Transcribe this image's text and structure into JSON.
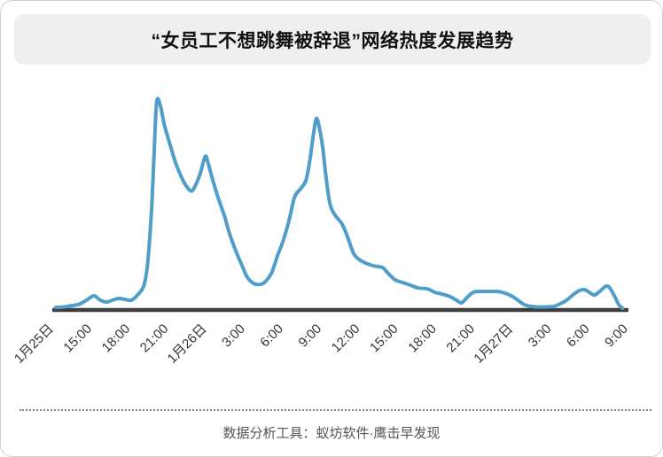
{
  "header": {
    "title": "“女员工不想跳舞被辞退”网络热度发展趋势"
  },
  "footer": {
    "credit": "数据分析工具：蚁坊软件·鹰击早发现"
  },
  "chart_data": {
    "type": "line",
    "title": "“女员工不想跳舞被辞退”网络热度发展趋势",
    "xlabel": "",
    "ylabel": "",
    "grid": false,
    "y_axis_visible": false,
    "legend": null,
    "line_color": "#4E9EC9",
    "axis_color": "#3E3E3E",
    "tick_label_color": "#333333",
    "x_unit": "hours offset from first tick (1月25日)",
    "x_range_hours": [
      0,
      45
    ],
    "ylim": [
      0,
      100
    ],
    "y_note": "relative heat index, main peak (1月25日 ~20:00) = 100",
    "x_ticks": [
      {
        "label": "1月25日",
        "t": 0
      },
      {
        "label": "15:00",
        "t": 3
      },
      {
        "label": "18:00",
        "t": 6
      },
      {
        "label": "21:00",
        "t": 9
      },
      {
        "label": "1月26日",
        "t": 12
      },
      {
        "label": "3:00",
        "t": 15
      },
      {
        "label": "6:00",
        "t": 18
      },
      {
        "label": "9:00",
        "t": 21
      },
      {
        "label": "12:00",
        "t": 24
      },
      {
        "label": "15:00",
        "t": 27
      },
      {
        "label": "18:00",
        "t": 30
      },
      {
        "label": "21:00",
        "t": 33
      },
      {
        "label": "1月27日",
        "t": 36
      },
      {
        "label": "3:00",
        "t": 39
      },
      {
        "label": "6:00",
        "t": 42
      },
      {
        "label": "9:00",
        "t": 45
      }
    ],
    "points": [
      [
        0,
        0.4
      ],
      [
        0.6,
        0.6
      ],
      [
        1.3,
        1.3
      ],
      [
        1.9,
        2.1
      ],
      [
        2.5,
        4.3
      ],
      [
        3.0,
        6.0
      ],
      [
        3.5,
        3.8
      ],
      [
        4.0,
        3.0
      ],
      [
        4.4,
        3.8
      ],
      [
        4.9,
        4.7
      ],
      [
        5.4,
        4.3
      ],
      [
        5.9,
        3.8
      ],
      [
        6.4,
        6.4
      ],
      [
        6.9,
        11.1
      ],
      [
        7.2,
        22.2
      ],
      [
        7.5,
        47.9
      ],
      [
        7.7,
        75.2
      ],
      [
        7.9,
        100
      ],
      [
        8.2,
        97.9
      ],
      [
        8.5,
        88.9
      ],
      [
        9.0,
        78.2
      ],
      [
        9.4,
        70.1
      ],
      [
        9.8,
        64.1
      ],
      [
        10.2,
        59.4
      ],
      [
        10.6,
        56.8
      ],
      [
        10.9,
        59.0
      ],
      [
        11.3,
        65.0
      ],
      [
        11.7,
        73.5
      ],
      [
        11.9,
        70.9
      ],
      [
        12.2,
        64.1
      ],
      [
        12.7,
        53.8
      ],
      [
        13.2,
        44.9
      ],
      [
        13.6,
        36.3
      ],
      [
        14.1,
        27.8
      ],
      [
        14.6,
        20.5
      ],
      [
        15.0,
        15.0
      ],
      [
        15.5,
        12.0
      ],
      [
        16.0,
        11.5
      ],
      [
        16.4,
        12.8
      ],
      [
        16.9,
        17.1
      ],
      [
        17.4,
        26.1
      ],
      [
        17.8,
        32.5
      ],
      [
        18.3,
        43.2
      ],
      [
        18.7,
        53.8
      ],
      [
        19.2,
        58.1
      ],
      [
        19.6,
        62.0
      ],
      [
        19.9,
        71.8
      ],
      [
        20.2,
        85.0
      ],
      [
        20.4,
        91.9
      ],
      [
        20.6,
        88.9
      ],
      [
        20.9,
        78.2
      ],
      [
        21.2,
        62.0
      ],
      [
        21.5,
        50.0
      ],
      [
        21.9,
        44.9
      ],
      [
        22.4,
        41.0
      ],
      [
        22.8,
        35.5
      ],
      [
        23.3,
        26.9
      ],
      [
        23.7,
        23.9
      ],
      [
        24.3,
        21.8
      ],
      [
        24.9,
        20.5
      ],
      [
        25.6,
        19.7
      ],
      [
        26.0,
        17.1
      ],
      [
        26.6,
        13.7
      ],
      [
        27.2,
        12.4
      ],
      [
        27.8,
        11.1
      ],
      [
        28.4,
        9.8
      ],
      [
        29.1,
        9.4
      ],
      [
        29.7,
        7.7
      ],
      [
        30.3,
        6.8
      ],
      [
        30.9,
        5.6
      ],
      [
        31.4,
        3.8
      ],
      [
        31.8,
        2.6
      ],
      [
        32.2,
        5.1
      ],
      [
        32.7,
        7.7
      ],
      [
        33.3,
        8.1
      ],
      [
        33.9,
        8.1
      ],
      [
        34.6,
        8.1
      ],
      [
        35.2,
        7.3
      ],
      [
        35.8,
        5.6
      ],
      [
        36.3,
        3.4
      ],
      [
        36.7,
        1.7
      ],
      [
        37.2,
        0.9
      ],
      [
        37.7,
        0.6
      ],
      [
        38.3,
        0.6
      ],
      [
        39.0,
        0.9
      ],
      [
        39.5,
        2.1
      ],
      [
        40.0,
        3.8
      ],
      [
        40.5,
        6.4
      ],
      [
        41.0,
        8.5
      ],
      [
        41.4,
        9.0
      ],
      [
        41.8,
        7.7
      ],
      [
        42.2,
        6.4
      ],
      [
        42.6,
        8.1
      ],
      [
        43.1,
        10.7
      ],
      [
        43.4,
        9.8
      ],
      [
        43.8,
        5.6
      ],
      [
        44.1,
        1.7
      ],
      [
        44.4,
        0
      ]
    ]
  }
}
